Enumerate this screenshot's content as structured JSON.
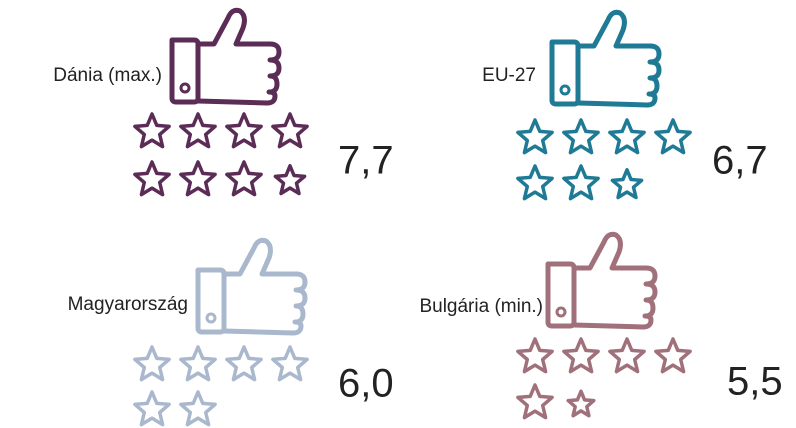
{
  "chart_data": {
    "type": "rating",
    "categories": [
      "Dánia (max.)",
      "EU-27",
      "Magyarország",
      "Bulgária (min.)"
    ],
    "values": [
      7.7,
      6.7,
      6.0,
      5.5
    ],
    "value_labels": [
      "7,7",
      "6,7",
      "6,0",
      "5,5"
    ],
    "colors": [
      "#5b2c55",
      "#1f7a96",
      "#a9b8cc",
      "#a0717a"
    ]
  }
}
